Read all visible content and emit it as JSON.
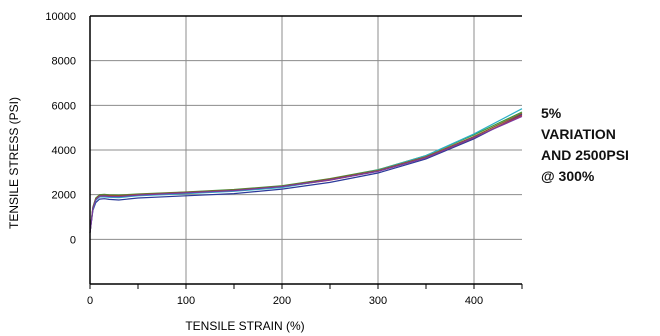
{
  "chart_data": {
    "type": "line",
    "xlabel": "TENSILE STRAIN (%)",
    "ylabel": "TENSILE STRESS (PSI)",
    "xlim": [
      0,
      450
    ],
    "ylim": [
      -2000,
      10000
    ],
    "x_ticks": [
      "0",
      "100",
      "200",
      "300",
      "400"
    ],
    "y_ticks": [
      "0",
      "2000",
      "4000",
      "6000",
      "8000",
      "10000"
    ],
    "grid": true,
    "annotation": [
      "5%",
      "VARIATION",
      "AND 2500PSI",
      "@ 300%"
    ],
    "series": [
      {
        "color": "#2b3a9a",
        "x": [
          0,
          3,
          6,
          10,
          15,
          20,
          30,
          50,
          100,
          150,
          200,
          250,
          300,
          350,
          400,
          450
        ],
        "y": [
          300,
          1300,
          1650,
          1800,
          1820,
          1790,
          1760,
          1850,
          1950,
          2050,
          2250,
          2550,
          2970,
          3600,
          4500,
          5600
        ]
      },
      {
        "color": "#c0303a",
        "x": [
          0,
          3,
          6,
          10,
          15,
          20,
          30,
          50,
          100,
          150,
          200,
          250,
          300,
          350,
          400,
          450
        ],
        "y": [
          300,
          1400,
          1800,
          1950,
          1960,
          1950,
          1950,
          2000,
          2100,
          2200,
          2350,
          2650,
          3050,
          3650,
          4550,
          5550
        ]
      },
      {
        "color": "#3a9a3a",
        "x": [
          0,
          3,
          6,
          10,
          15,
          20,
          30,
          50,
          100,
          150,
          200,
          250,
          300,
          350,
          400,
          450
        ],
        "y": [
          300,
          1450,
          1850,
          2000,
          2010,
          1990,
          1980,
          2030,
          2120,
          2230,
          2400,
          2720,
          3120,
          3750,
          4680,
          5700
        ]
      },
      {
        "color": "#2ab0c8",
        "x": [
          0,
          3,
          6,
          10,
          15,
          20,
          30,
          50,
          100,
          150,
          200,
          250,
          300,
          350,
          400,
          450
        ],
        "y": [
          300,
          1350,
          1750,
          1900,
          1900,
          1880,
          1870,
          1950,
          2050,
          2150,
          2320,
          2680,
          3100,
          3750,
          4720,
          5850
        ]
      },
      {
        "color": "#8a5a2a",
        "x": [
          0,
          3,
          6,
          10,
          15,
          20,
          30,
          50,
          100,
          150,
          200,
          250,
          300,
          350,
          400,
          450
        ],
        "y": [
          300,
          1420,
          1820,
          1970,
          1980,
          1970,
          1960,
          2010,
          2110,
          2210,
          2380,
          2700,
          3080,
          3700,
          4600,
          5650
        ]
      },
      {
        "color": "#7a3aa0",
        "x": [
          0,
          3,
          6,
          10,
          15,
          20,
          30,
          50,
          100,
          150,
          200,
          250,
          300,
          350,
          400,
          450
        ],
        "y": [
          300,
          1380,
          1780,
          1930,
          1940,
          1920,
          1910,
          1980,
          2080,
          2180,
          2360,
          2660,
          3040,
          3650,
          4560,
          5500
        ]
      }
    ]
  }
}
